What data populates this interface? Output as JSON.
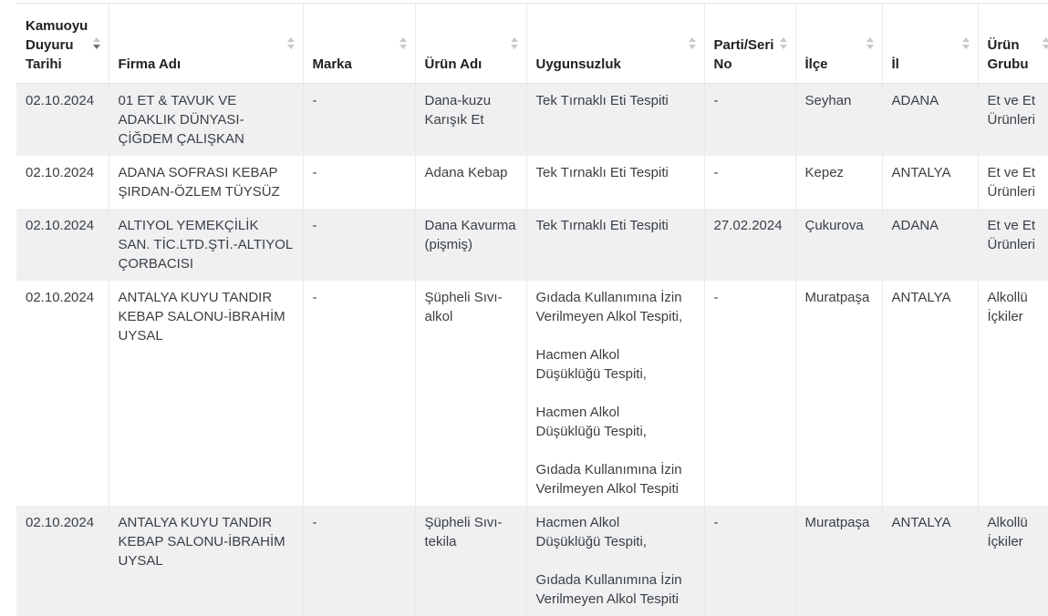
{
  "table": {
    "sorted_column": "Kamuoyu Duyuru Tarihi",
    "sort_direction": "descending",
    "columns": [
      {
        "label": "Kamuoyu Duyuru Tarihi"
      },
      {
        "label": "Firma Adı"
      },
      {
        "label": "Marka"
      },
      {
        "label": "Ürün Adı"
      },
      {
        "label": "Uygunsuzluk"
      },
      {
        "label": "Parti/Seri No"
      },
      {
        "label": "İlçe"
      },
      {
        "label": "İl"
      },
      {
        "label": "Ürün Grubu"
      }
    ],
    "rows": [
      {
        "tarih": "02.10.2024",
        "firma": "01 ET & TAVUK VE ADAKLIK DÜNYASI-ÇİĞDEM ÇALIŞKAN",
        "marka": "-",
        "urun_adi": "Dana-kuzu Karışık Et",
        "uygunsuzluk": "Tek Tırnaklı Eti Tespiti",
        "parti_seri_no": "-",
        "ilce": "Seyhan",
        "il": "ADANA",
        "urun_grubu": "Et ve Et Ürünleri"
      },
      {
        "tarih": "02.10.2024",
        "firma": "ADANA SOFRASI KEBAP ŞIRDAN-ÖZLEM TÜYSÜZ",
        "marka": "-",
        "urun_adi": "Adana Kebap",
        "uygunsuzluk": "Tek Tırnaklı Eti Tespiti",
        "parti_seri_no": "-",
        "ilce": "Kepez",
        "il": "ANTALYA",
        "urun_grubu": "Et ve Et Ürünleri"
      },
      {
        "tarih": "02.10.2024",
        "firma": "ALTIYOL YEMEKÇİLİK SAN. TİC.LTD.ŞTİ.-ALTIYOL ÇORBACISI",
        "marka": "-",
        "urun_adi": "Dana Kavurma (pişmiş)",
        "uygunsuzluk": "Tek Tırnaklı Eti Tespiti",
        "parti_seri_no": "27.02.2024",
        "ilce": "Çukurova",
        "il": "ADANA",
        "urun_grubu": "Et ve Et Ürünleri"
      },
      {
        "tarih": "02.10.2024",
        "firma": "ANTALYA KUYU TANDIR KEBAP SALONU-İBRAHİM UYSAL",
        "marka": "-",
        "urun_adi": "Şüpheli Sıvı-alkol",
        "uygunsuzluk": "Gıdada Kullanımına İzin\nVerilmeyen Alkol Tespiti,\n\nHacmen Alkol\nDüşüklüğü Tespiti,\n\nHacmen Alkol\nDüşüklüğü Tespiti,\n\nGıdada Kullanımına İzin\nVerilmeyen Alkol Tespiti",
        "parti_seri_no": "-",
        "ilce": "Muratpaşa",
        "il": "ANTALYA",
        "urun_grubu": "Alkollü İçkiler"
      },
      {
        "tarih": "02.10.2024",
        "firma": "ANTALYA KUYU TANDIR KEBAP SALONU-İBRAHİM UYSAL",
        "marka": "-",
        "urun_adi": "Şüpheli Sıvı-tekila",
        "uygunsuzluk": "Hacmen Alkol\nDüşüklüğü Tespiti,\n\nGıdada Kullanımına İzin\nVerilmeyen Alkol Tespiti",
        "parti_seri_no": "-",
        "ilce": "Muratpaşa",
        "il": "ANTALYA",
        "urun_grubu": "Alkollü İçkiler"
      }
    ]
  }
}
